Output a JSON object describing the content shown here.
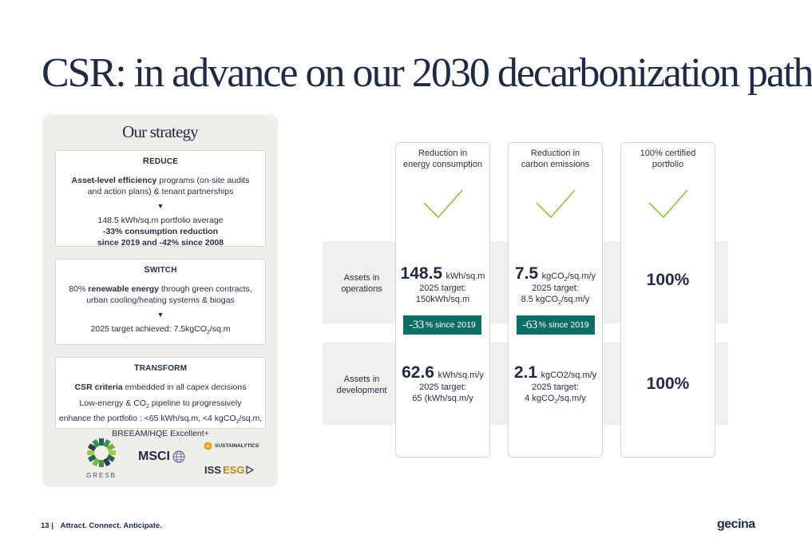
{
  "title": "CSR: in advance on our 2030 decarbonization path",
  "strategy": {
    "title": "Our strategy",
    "reduce": {
      "heading_first": "R",
      "heading_rest": "EDUCE",
      "line1_bold": "Asset-level efficiency",
      "line1_rest": " programs (on-site audits",
      "line2": "and action plans) & tenant partnerships",
      "arrow": "▼",
      "line3": "148.5 kWh/sq.m portfolio average",
      "line4": "-33% consumption reduction",
      "line5": "since 2019 and -42% since 2008"
    },
    "switch": {
      "heading_first": "S",
      "heading_rest": "WITCH",
      "line1_pre": "80% ",
      "line1_bold": "renewable energy",
      "line1_post": " through green contracts,",
      "line2": "urban cooling/heating systems & biogas",
      "arrow": "▼",
      "line3_pre": "2025 target achieved: 7.5kgCO",
      "line3_sub": "2",
      "line3_post": "/sq.m"
    },
    "transform": {
      "heading_first": "T",
      "heading_rest": "RANSFORM",
      "line1_bold": "CSR criteria",
      "line1_rest": " embedded in all capex decisions",
      "line2_pre": "Low-energy & CO",
      "line2_sub": "2",
      "line2_post": " pipeline to progressively",
      "line3_pre": "enhance the portfolio : <65 kWh/sq.m, <4 kgCO",
      "line3_sub": "2",
      "line3_post": "/sq.m,",
      "line4": "BREEAM/HQE Excellent+"
    },
    "logos": {
      "gresb": "GRESB",
      "msci": "MSCI",
      "sustainalytics": "SUSTAINALYTICS",
      "iss": "ISS",
      "esg": "ESG"
    }
  },
  "columns": [
    {
      "line1": "Reduction in",
      "line2": "energy consumption"
    },
    {
      "line1": "Reduction in",
      "line2": "carbon emissions"
    },
    {
      "line1": "100% certified",
      "line2": "portfolio"
    }
  ],
  "rows": {
    "operations": {
      "line1": "Assets in",
      "line2": "operations"
    },
    "development": {
      "line1": "Assets in",
      "line2": "development"
    }
  },
  "cells": {
    "ops_energy": {
      "value": "148.5",
      "unit": "kWh/sq.m",
      "target1": "2025 target:",
      "target2": "150kWh/sq.m",
      "badge_num": "-33",
      "badge_rest": "% since 2019"
    },
    "ops_carbon": {
      "value": "7.5",
      "unit_pre": "kgCO",
      "unit_sub": "2",
      "unit_post": "/sq.m/y",
      "target1": "2025 target:",
      "target2_pre": "8.5 kgCO",
      "target2_sub": "2",
      "target2_post": "/sq.m/y",
      "badge_num": "-63",
      "badge_rest": "% since 2019"
    },
    "ops_cert": {
      "value": "100%"
    },
    "dev_energy": {
      "value": "62.6",
      "unit": "kWh/sq.m/y",
      "target1": "2025 target:",
      "target2": "65 (kWh/sq.m/y"
    },
    "dev_carbon": {
      "value": "2.1",
      "unit": "kgCO2/sq.m/y",
      "target1": "2025 target:",
      "target2_pre": "4 kgCO",
      "target2_sub": "2",
      "target2_post": "/sq.m/y"
    },
    "dev_cert": {
      "value": "100%"
    }
  },
  "footer": {
    "page": "13 |",
    "tagline": "Attract. Connect. Anticipate."
  },
  "brand": "gecina",
  "colors": {
    "check": "#8cc43f",
    "badge": "#0e6e66",
    "navy": "#1f2a44"
  }
}
